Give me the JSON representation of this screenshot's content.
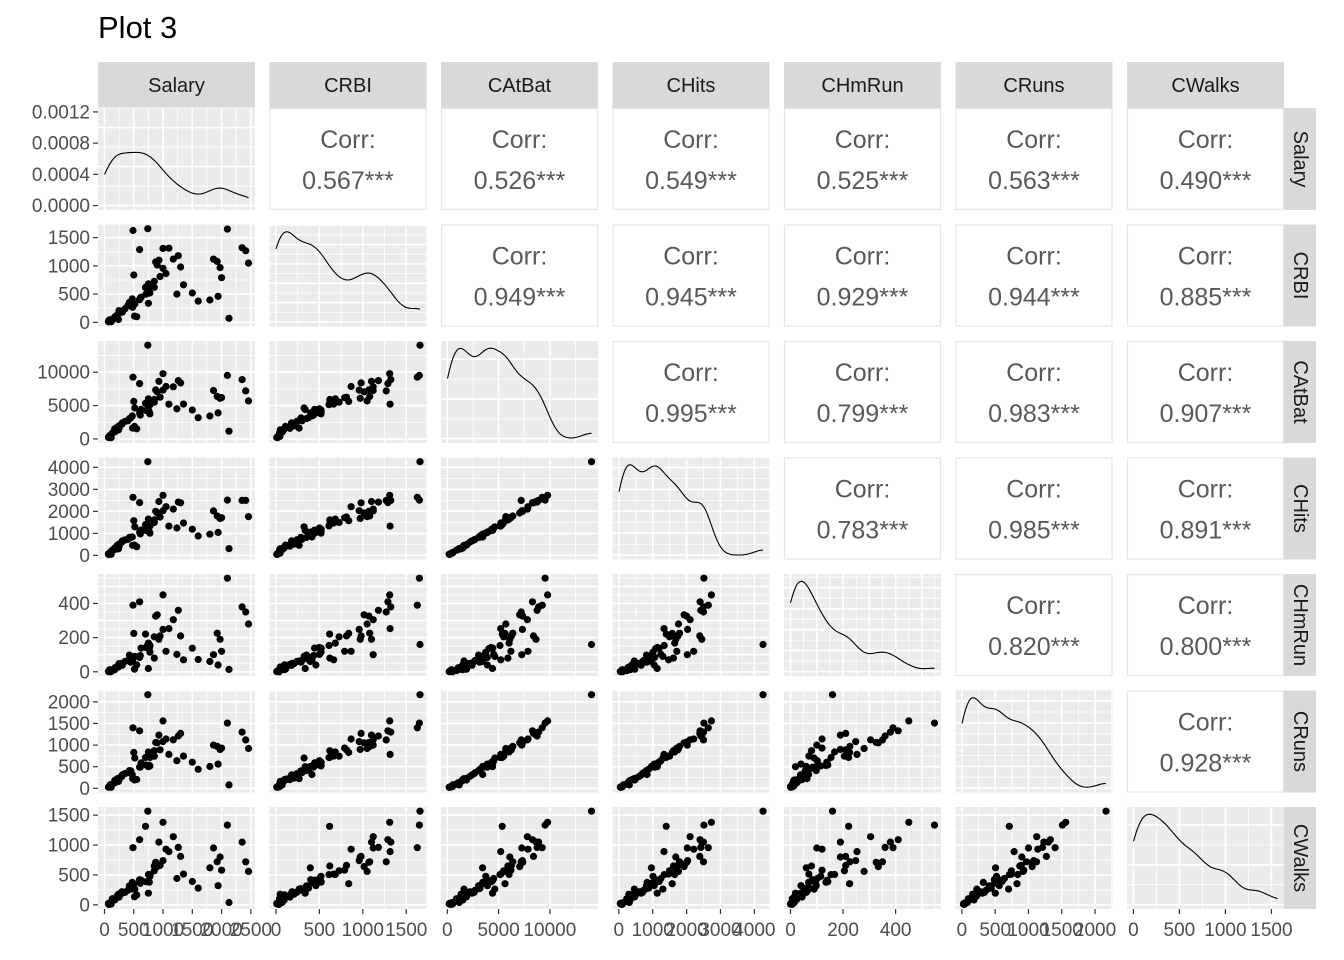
{
  "title": "Plot 3",
  "chart_data": {
    "type": "scatter-matrix",
    "variables": [
      "Salary",
      "CRBI",
      "CAtBat",
      "CHits",
      "CHmRun",
      "CRuns",
      "CWalks"
    ],
    "strip_labels": [
      "Salary",
      "CRBI",
      "CAtBat",
      "CHits",
      "CHmRun",
      "CRuns",
      "CWalks"
    ],
    "corr_label": "Corr:",
    "correlations": [
      {
        "row": "Salary",
        "col": "CRBI",
        "text": "0.567***"
      },
      {
        "row": "Salary",
        "col": "CAtBat",
        "text": "0.526***"
      },
      {
        "row": "Salary",
        "col": "CHits",
        "text": "0.549***"
      },
      {
        "row": "Salary",
        "col": "CHmRun",
        "text": "0.525***"
      },
      {
        "row": "Salary",
        "col": "CRuns",
        "text": "0.563***"
      },
      {
        "row": "Salary",
        "col": "CWalks",
        "text": "0.490***"
      },
      {
        "row": "CRBI",
        "col": "CAtBat",
        "text": "0.949***"
      },
      {
        "row": "CRBI",
        "col": "CHits",
        "text": "0.945***"
      },
      {
        "row": "CRBI",
        "col": "CHmRun",
        "text": "0.929***"
      },
      {
        "row": "CRBI",
        "col": "CRuns",
        "text": "0.944***"
      },
      {
        "row": "CRBI",
        "col": "CWalks",
        "text": "0.885***"
      },
      {
        "row": "CAtBat",
        "col": "CHits",
        "text": "0.995***"
      },
      {
        "row": "CAtBat",
        "col": "CHmRun",
        "text": "0.799***"
      },
      {
        "row": "CAtBat",
        "col": "CRuns",
        "text": "0.983***"
      },
      {
        "row": "CAtBat",
        "col": "CWalks",
        "text": "0.907***"
      },
      {
        "row": "CHits",
        "col": "CHmRun",
        "text": "0.783***"
      },
      {
        "row": "CHits",
        "col": "CRuns",
        "text": "0.985***"
      },
      {
        "row": "CHits",
        "col": "CWalks",
        "text": "0.891***"
      },
      {
        "row": "CHmRun",
        "col": "CRuns",
        "text": "0.820***"
      },
      {
        "row": "CHmRun",
        "col": "CWalks",
        "text": "0.800***"
      },
      {
        "row": "CRuns",
        "col": "CWalks",
        "text": "0.928***"
      }
    ],
    "x_ticks": [
      [
        "0",
        "500",
        "1000",
        "1500",
        "2000",
        "2500"
      ],
      [
        "0",
        "500",
        "1000",
        "1500"
      ],
      [
        "0",
        "5000",
        "10000"
      ],
      [
        "0",
        "1000",
        "2000",
        "3000",
        "4000"
      ],
      [
        "0",
        "200",
        "400"
      ],
      [
        "0",
        "500",
        "1000",
        "1500",
        "2000"
      ],
      [
        "0",
        "500",
        "1000",
        "1500"
      ]
    ],
    "y_ticks": [
      [
        "0.0000",
        "0.0004",
        "0.0008",
        "0.0012"
      ],
      [
        "0",
        "500",
        "1000",
        "1500"
      ],
      [
        "0",
        "5000",
        "10000"
      ],
      [
        "0",
        "1000",
        "2000",
        "3000",
        "4000"
      ],
      [
        "0",
        "200",
        "400"
      ],
      [
        "0",
        "500",
        "1000",
        "1500",
        "2000"
      ],
      [
        "0",
        "500",
        "1000",
        "1500"
      ]
    ],
    "salary_density_ylim": [
      0,
      0.00125
    ],
    "ranges": {
      "Salary": [
        0,
        2460
      ],
      "CRBI": [
        0,
        1659
      ],
      "CAtBat": [
        19,
        14053
      ],
      "CHits": [
        4,
        4256
      ],
      "CHmRun": [
        0,
        548
      ],
      "CRuns": [
        1,
        2165
      ],
      "CWalks": [
        1,
        1566
      ]
    },
    "players_sample": [
      {
        "Salary": 475,
        "CRBI": 414,
        "CAtBat": 3449,
        "CHits": 835,
        "CHmRun": 69,
        "CRuns": 321,
        "CWalks": 375
      },
      {
        "Salary": 480,
        "CRBI": 266,
        "CAtBat": 1624,
        "CHits": 457,
        "CHmRun": 63,
        "CRuns": 224,
        "CWalks": 263
      },
      {
        "Salary": 500,
        "CRBI": 838,
        "CAtBat": 5628,
        "CHits": 1575,
        "CHmRun": 225,
        "CRuns": 828,
        "CWalks": 354
      },
      {
        "Salary": 91.5,
        "CRBI": 46,
        "CAtBat": 396,
        "CHits": 101,
        "CHmRun": 12,
        "CRuns": 48,
        "CWalks": 33
      },
      {
        "Salary": 750,
        "CRBI": 336,
        "CAtBat": 4408,
        "CHits": 1133,
        "CHmRun": 19,
        "CRuns": 501,
        "CWalks": 194
      },
      {
        "Salary": 70,
        "CRBI": 9,
        "CAtBat": 214,
        "CHits": 42,
        "CHmRun": 1,
        "CRuns": 30,
        "CWalks": 24
      },
      {
        "Salary": 100,
        "CRBI": 37,
        "CAtBat": 509,
        "CHits": 108,
        "CHmRun": 0,
        "CRuns": 41,
        "CWalks": 12
      },
      {
        "Salary": 75,
        "CRBI": 34,
        "CAtBat": 341,
        "CHits": 86,
        "CHmRun": 6,
        "CRuns": 32,
        "CWalks": 8
      },
      {
        "Salary": 1100,
        "CRBI": 1314,
        "CAtBat": 5206,
        "CHits": 1332,
        "CHmRun": 253,
        "CRuns": 784,
        "CWalks": 890
      },
      {
        "Salary": 517.143,
        "CRBI": 324,
        "CAtBat": 4631,
        "CHits": 1300,
        "CHmRun": 90,
        "CRuns": 702,
        "CWalks": 263
      },
      {
        "Salary": 512.5,
        "CRBI": 110,
        "CAtBat": 1876,
        "CHits": 467,
        "CHmRun": 15,
        "CRuns": 192,
        "CWalks": 135
      },
      {
        "Salary": 550,
        "CRBI": 99,
        "CAtBat": 1512,
        "CHits": 392,
        "CHmRun": 41,
        "CRuns": 205,
        "CWalks": 166
      },
      {
        "Salary": 700,
        "CRBI": 618,
        "CAtBat": 5347,
        "CHits": 1397,
        "CHmRun": 221,
        "CRuns": 712,
        "CWalks": 1314
      },
      {
        "Salary": 240,
        "CRBI": 49,
        "CAtBat": 1350,
        "CHits": 298,
        "CHmRun": 28,
        "CRuns": 160,
        "CWalks": 178
      },
      {
        "Salary": 775,
        "CRBI": 519,
        "CAtBat": 3754,
        "CHits": 1007,
        "CHmRun": 115,
        "CRuns": 519,
        "CWalks": 478
      },
      {
        "Salary": 175,
        "CRBI": 95,
        "CAtBat": 1523,
        "CHits": 333,
        "CHmRun": 12,
        "CRuns": 181,
        "CWalks": 83
      },
      {
        "Salary": 135,
        "CRBI": 40,
        "CAtBat": 900,
        "CHits": 234,
        "CHmRun": 7,
        "CRuns": 98,
        "CWalks": 103
      },
      {
        "Salary": 100,
        "CRBI": 39,
        "CAtBat": 562,
        "CHits": 144,
        "CHmRun": 9,
        "CRuns": 83,
        "CWalks": 39
      },
      {
        "Salary": 115,
        "CRBI": 11,
        "CAtBat": 232,
        "CHits": 54,
        "CHmRun": 2,
        "CRuns": 26,
        "CWalks": 16
      },
      {
        "Salary": 600,
        "CRBI": 400,
        "CAtBat": 3891,
        "CHits": 1056,
        "CHmRun": 84,
        "CRuns": 488,
        "CWalks": 420
      },
      {
        "Salary": 776.667,
        "CRBI": 611,
        "CAtBat": 5134,
        "CHits": 1340,
        "CHmRun": 154,
        "CRuns": 713,
        "CWalks": 506
      },
      {
        "Salary": 765,
        "CRBI": 520,
        "CAtBat": 4050,
        "CHits": 1085,
        "CHmRun": 135,
        "CRuns": 530,
        "CWalks": 379
      },
      {
        "Salary": 708.333,
        "CRBI": 498,
        "CAtBat": 4256,
        "CHits": 1137,
        "CHmRun": 142,
        "CRuns": 540,
        "CWalks": 387
      },
      {
        "Salary": 750,
        "CRBI": 683,
        "CAtBat": 6019,
        "CHits": 1649,
        "CHmRun": 168,
        "CRuns": 840,
        "CWalks": 507
      },
      {
        "Salary": 625,
        "CRBI": 445,
        "CAtBat": 4432,
        "CHits": 1147,
        "CHmRun": 139,
        "CRuns": 589,
        "CWalks": 413
      },
      {
        "Salary": 900,
        "CRBI": 1015,
        "CAtBat": 7060,
        "CHits": 1926,
        "CHmRun": 334,
        "CRuns": 1054,
        "CWalks": 640
      },
      {
        "Salary": 110,
        "CRBI": 17,
        "CAtBat": 183,
        "CHits": 52,
        "CHmRun": 1,
        "CRuns": 23,
        "CWalks": 14
      },
      {
        "Salary": 612.5,
        "CRBI": 433,
        "CAtBat": 3572,
        "CHits": 974,
        "CHmRun": 95,
        "CRuns": 490,
        "CWalks": 361
      },
      {
        "Salary": 300,
        "CRBI": 186,
        "CAtBat": 2220,
        "CHits": 610,
        "CHmRun": 49,
        "CRuns": 279,
        "CWalks": 220
      },
      {
        "Salary": 850,
        "CRBI": 727,
        "CAtBat": 5500,
        "CHits": 1496,
        "CHmRun": 205,
        "CRuns": 743,
        "CWalks": 569
      },
      {
        "Salary": 90,
        "CRBI": 20,
        "CAtBat": 330,
        "CHits": 75,
        "CHmRun": 4,
        "CRuns": 34,
        "CWalks": 21
      },
      {
        "Salary": 67.5,
        "CRBI": 14,
        "CAtBat": 280,
        "CHits": 66,
        "CHmRun": 2,
        "CRuns": 28,
        "CWalks": 19
      },
      {
        "Salary": 180,
        "CRBI": 75,
        "CAtBat": 1070,
        "CHits": 270,
        "CHmRun": 24,
        "CRuns": 130,
        "CWalks": 93
      },
      {
        "Salary": 305,
        "CRBI": 180,
        "CAtBat": 2410,
        "CHits": 660,
        "CHmRun": 38,
        "CRuns": 310,
        "CWalks": 195
      },
      {
        "Salary": 215,
        "CRBI": 128,
        "CAtBat": 1730,
        "CHits": 447,
        "CHmRun": 31,
        "CRuns": 219,
        "CWalks": 147
      },
      {
        "Salary": 247.5,
        "CRBI": 207,
        "CAtBat": 1950,
        "CHits": 513,
        "CHmRun": 48,
        "CRuns": 236,
        "CWalks": 178
      },
      {
        "Salary": 250,
        "CRBI": 160,
        "CAtBat": 1590,
        "CHits": 415,
        "CHmRun": 44,
        "CRuns": 201,
        "CWalks": 130
      },
      {
        "Salary": 400,
        "CRBI": 300,
        "CAtBat": 2710,
        "CHits": 732,
        "CHmRun": 66,
        "CRuns": 362,
        "CWalks": 244
      },
      {
        "Salary": 450,
        "CRBI": 288,
        "CAtBat": 3150,
        "CHits": 822,
        "CHmRun": 56,
        "CRuns": 405,
        "CWalks": 271
      },
      {
        "Salary": 350,
        "CRBI": 240,
        "CAtBat": 2625,
        "CHits": 701,
        "CHmRun": 60,
        "CRuns": 340,
        "CWalks": 210
      },
      {
        "Salary": 425,
        "CRBI": 352,
        "CAtBat": 3050,
        "CHits": 815,
        "CHmRun": 98,
        "CRuns": 410,
        "CWalks": 318
      },
      {
        "Salary": 950,
        "CRBI": 812,
        "CAtBat": 6250,
        "CHits": 1742,
        "CHmRun": 210,
        "CRuns": 890,
        "CWalks": 660
      },
      {
        "Salary": 1000,
        "CRBI": 958,
        "CAtBat": 7320,
        "CHits": 2030,
        "CHmRun": 248,
        "CRuns": 1080,
        "CWalks": 740
      },
      {
        "Salary": 1050,
        "CRBI": 865,
        "CAtBat": 7860,
        "CHits": 2211,
        "CHmRun": 120,
        "CRuns": 1140,
        "CWalks": 930
      },
      {
        "Salary": 875,
        "CRBI": 1070,
        "CAtBat": 7350,
        "CHits": 2003,
        "CHmRun": 326,
        "CRuns": 1060,
        "CWalks": 712
      },
      {
        "Salary": 1175,
        "CRBI": 1120,
        "CAtBat": 7810,
        "CHits": 2103,
        "CHmRun": 305,
        "CRuns": 1123,
        "CWalks": 1140
      },
      {
        "Salary": 1260,
        "CRBI": 1180,
        "CAtBat": 8750,
        "CHits": 2420,
        "CHmRun": 360,
        "CRuns": 1210,
        "CWalks": 960
      },
      {
        "Salary": 1300,
        "CRBI": 980,
        "CAtBat": 8400,
        "CHits": 2390,
        "CHmRun": 210,
        "CRuns": 1270,
        "CWalks": 810
      },
      {
        "Salary": 1237.5,
        "CRBI": 500,
        "CAtBat": 4520,
        "CHits": 1242,
        "CHmRun": 102,
        "CRuns": 638,
        "CWalks": 440
      },
      {
        "Salary": 1350,
        "CRBI": 665,
        "CAtBat": 5215,
        "CHits": 1470,
        "CHmRun": 70,
        "CRuns": 745,
        "CWalks": 515
      },
      {
        "Salary": 1500,
        "CRBI": 520,
        "CAtBat": 4330,
        "CHits": 1190,
        "CHmRun": 138,
        "CRuns": 604,
        "CWalks": 390
      },
      {
        "Salary": 1600,
        "CRBI": 375,
        "CAtBat": 3185,
        "CHits": 880,
        "CHmRun": 72,
        "CRuns": 440,
        "CWalks": 280
      },
      {
        "Salary": 1800,
        "CRBI": 395,
        "CAtBat": 3440,
        "CHits": 960,
        "CHmRun": 60,
        "CRuns": 505,
        "CWalks": 620
      },
      {
        "Salary": 1861.46,
        "CRBI": 1120,
        "CAtBat": 7260,
        "CHits": 2020,
        "CHmRun": 100,
        "CRuns": 1000,
        "CWalks": 950
      },
      {
        "Salary": 1925.571,
        "CRBI": 1080,
        "CAtBat": 6380,
        "CHits": 1790,
        "CHmRun": 226,
        "CRuns": 970,
        "CWalks": 720
      },
      {
        "Salary": 1975,
        "CRBI": 970,
        "CAtBat": 6090,
        "CHits": 1680,
        "CHmRun": 190,
        "CRuns": 900,
        "CWalks": 800
      },
      {
        "Salary": 2127.333,
        "CRBI": 70,
        "CAtBat": 1160,
        "CHits": 310,
        "CHmRun": 14,
        "CRuns": 80,
        "CWalks": 40
      },
      {
        "Salary": 2412.5,
        "CRBI": 1270,
        "CAtBat": 7200,
        "CHits": 2500,
        "CHmRun": 350,
        "CRuns": 1120,
        "CWalks": 720
      },
      {
        "Salary": 2460,
        "CRBI": 1050,
        "CAtBat": 5700,
        "CHits": 1760,
        "CHmRun": 280,
        "CRuns": 920,
        "CWalks": 560
      },
      {
        "Salary": 740,
        "CRBI": 1659,
        "CAtBat": 14053,
        "CHits": 4256,
        "CHmRun": 160,
        "CRuns": 2165,
        "CWalks": 1566
      },
      {
        "Salary": 2100,
        "CRBI": 1652,
        "CAtBat": 9528,
        "CHits": 2510,
        "CHmRun": 548,
        "CRuns": 1509,
        "CWalks": 1333
      },
      {
        "Salary": 487.5,
        "CRBI": 1628,
        "CAtBat": 9250,
        "CHits": 2640,
        "CHmRun": 390,
        "CRuns": 1400,
        "CWalks": 955
      },
      {
        "Salary": 1000,
        "CRBI": 1310,
        "CAtBat": 9778,
        "CHits": 2732,
        "CHmRun": 450,
        "CRuns": 1560,
        "CWalks": 1380
      },
      {
        "Salary": 600,
        "CRBI": 1289,
        "CAtBat": 8300,
        "CHits": 2400,
        "CHmRun": 410,
        "CRuns": 1330,
        "CWalks": 1090
      },
      {
        "Salary": 2000,
        "CRBI": 790,
        "CAtBat": 6200,
        "CHits": 1710,
        "CHmRun": 120,
        "CRuns": 930,
        "CWalks": 580
      },
      {
        "Salary": 930,
        "CRBI": 1100,
        "CAtBat": 8640,
        "CHits": 2450,
        "CHmRun": 190,
        "CRuns": 1230,
        "CWalks": 1050
      },
      {
        "Salary": 850,
        "CRBI": 620,
        "CAtBat": 5910,
        "CHits": 1610,
        "CHmRun": 80,
        "CRuns": 870,
        "CWalks": 650
      },
      {
        "Salary": 1940,
        "CRBI": 460,
        "CAtBat": 3905,
        "CHits": 1045,
        "CHmRun": 40,
        "CRuns": 560,
        "CWalks": 320
      },
      {
        "Salary": 2350,
        "CRBI": 1322,
        "CAtBat": 8900,
        "CHits": 2500,
        "CHmRun": 380,
        "CRuns": 1300,
        "CWalks": 1050
      }
    ]
  }
}
